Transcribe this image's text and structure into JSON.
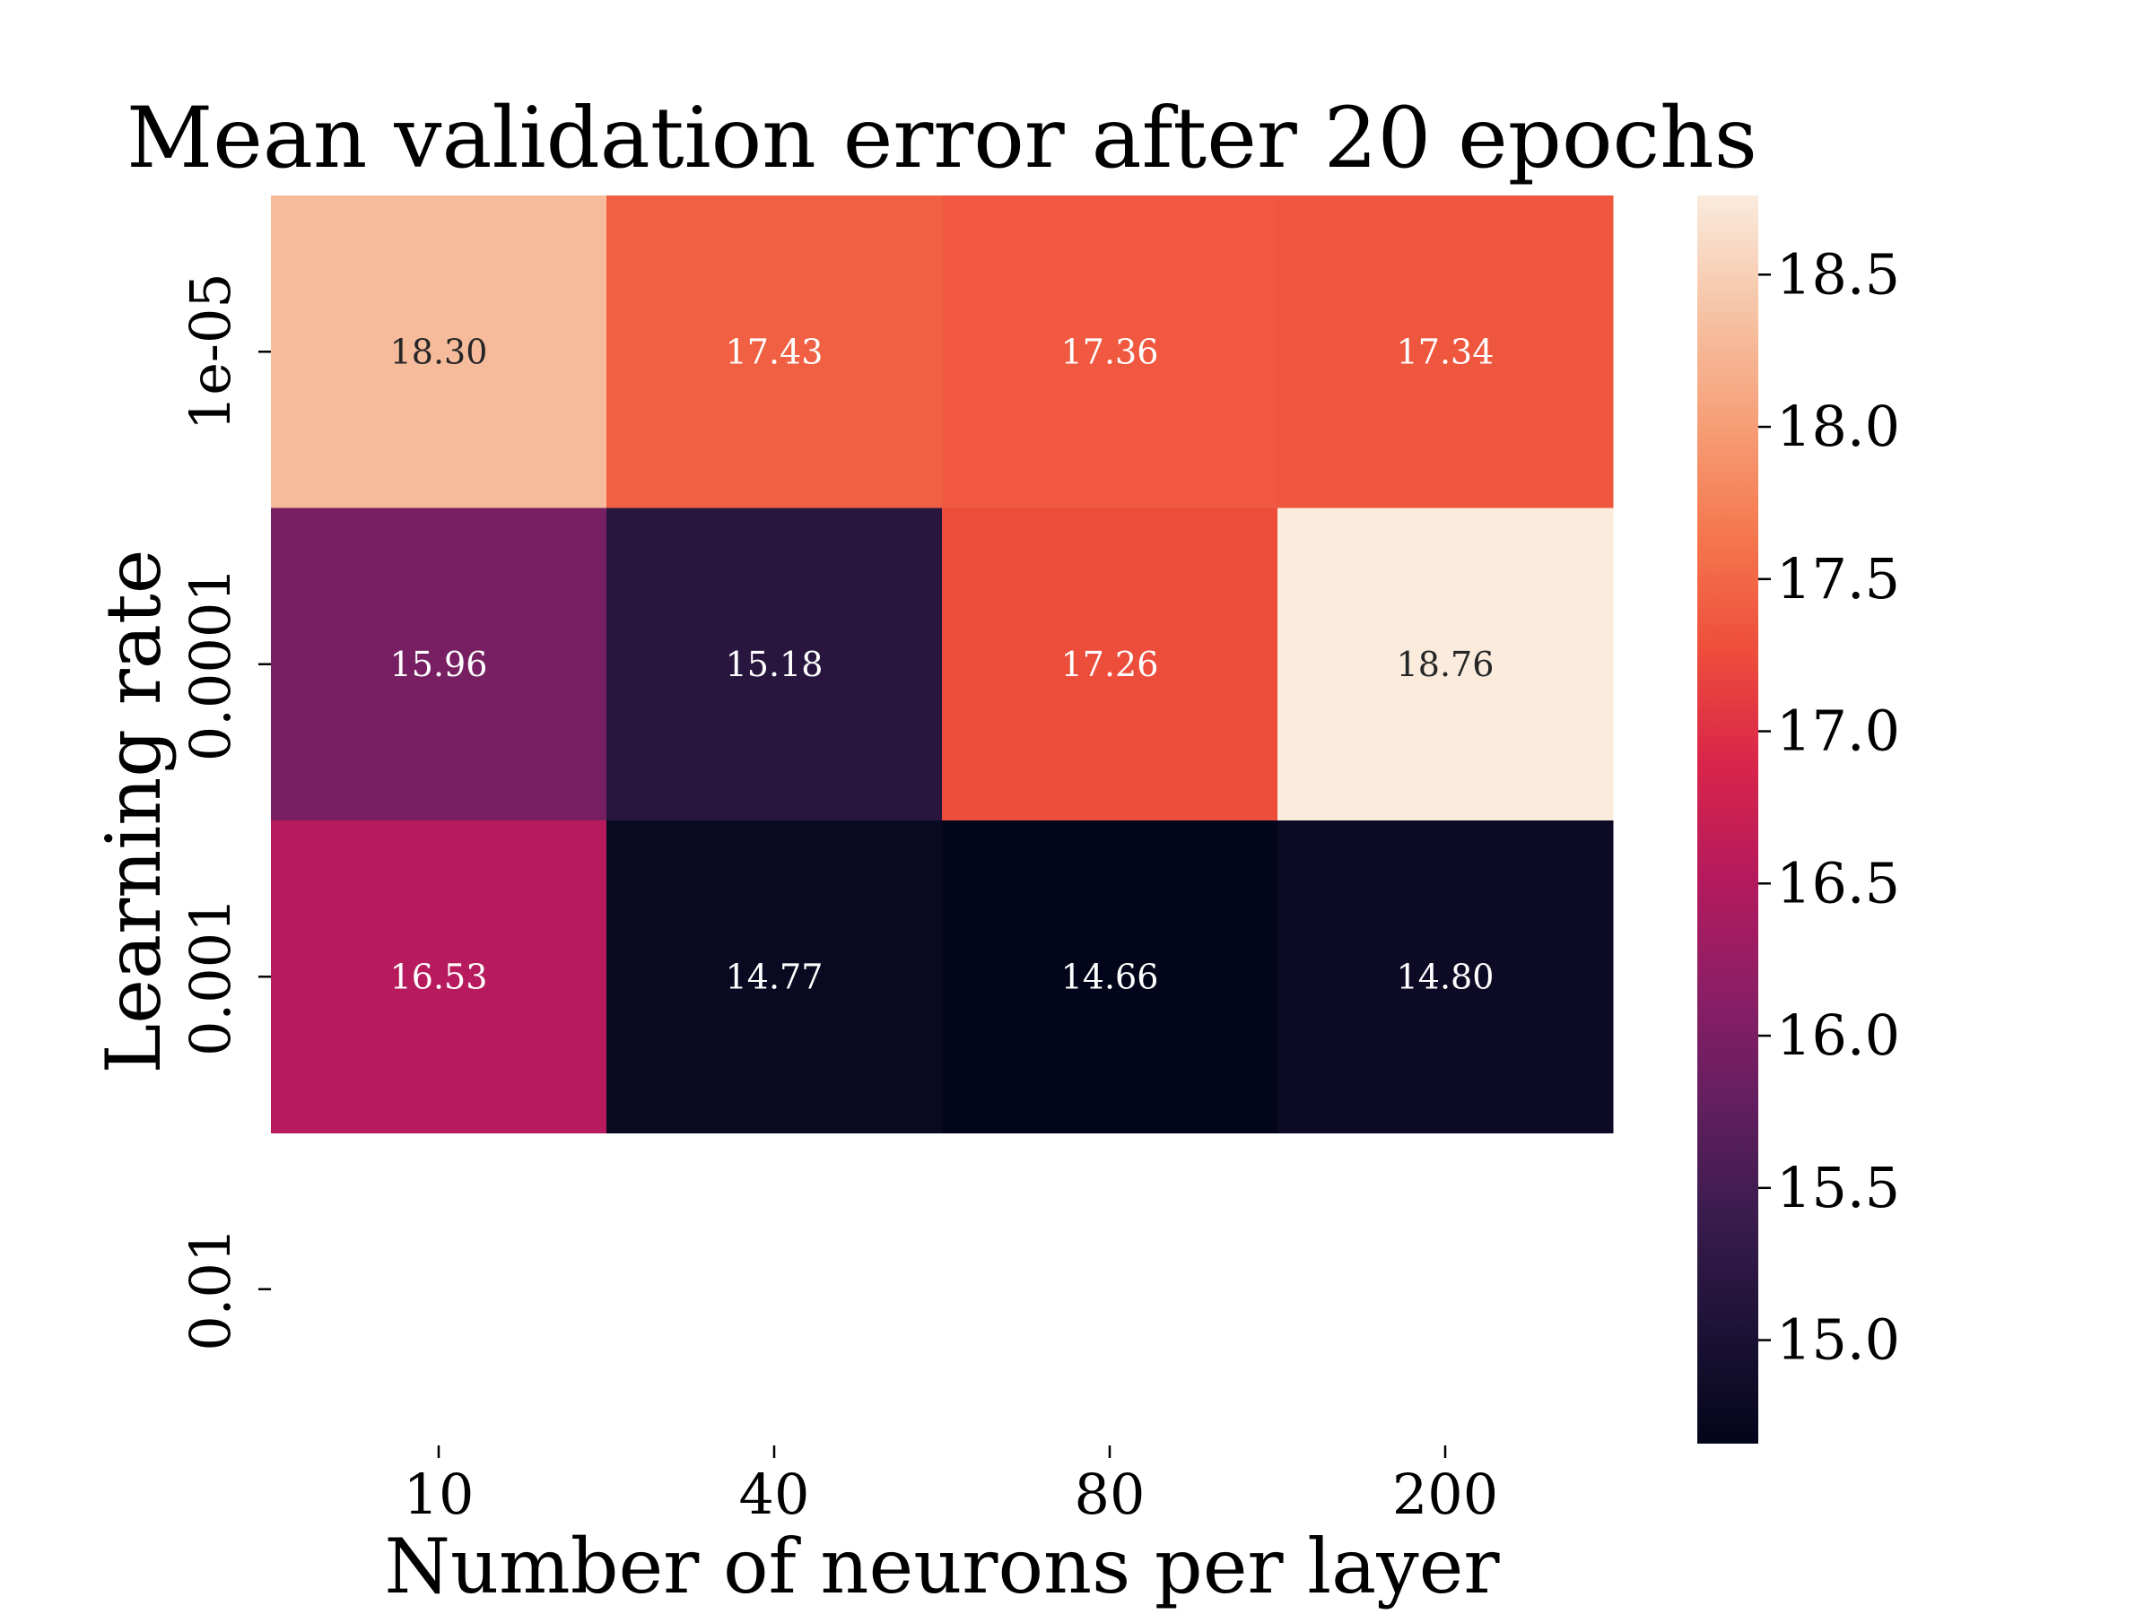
{
  "chart_data": {
    "type": "heatmap",
    "title": "Mean validation error after 20 epochs",
    "xlabel": "Number of neurons per layer",
    "ylabel": "Learning rate",
    "x_categories": [
      "10",
      "40",
      "80",
      "200"
    ],
    "y_categories": [
      "1e-05",
      "0.0001",
      "0.001",
      "0.01"
    ],
    "values": [
      [
        18.3,
        17.43,
        17.36,
        17.34
      ],
      [
        15.96,
        15.18,
        17.26,
        18.76
      ],
      [
        16.53,
        14.77,
        14.66,
        14.8
      ],
      [
        null,
        null,
        null,
        null
      ]
    ],
    "cell_labels": [
      [
        "18.30",
        "17.43",
        "17.36",
        "17.34"
      ],
      [
        "15.96",
        "15.18",
        "17.26",
        "18.76"
      ],
      [
        "16.53",
        "14.77",
        "14.66",
        "14.80"
      ],
      [
        "",
        "",
        "",
        ""
      ]
    ],
    "colorbar": {
      "range": [
        14.66,
        18.76
      ],
      "ticks": [
        15.0,
        15.5,
        16.0,
        16.5,
        17.0,
        17.5,
        18.0,
        18.5
      ],
      "tick_labels": [
        "15.0",
        "15.5",
        "16.0",
        "16.5",
        "17.0",
        "17.5",
        "18.0",
        "18.5"
      ],
      "colormap": "rocket",
      "colormap_stops": [
        "#03051a",
        "#1c1236",
        "#3a1c4d",
        "#631f5f",
        "#8d1e66",
        "#b61a5d",
        "#d9254a",
        "#ee4e3b",
        "#f5774d",
        "#f69f78",
        "#f6c4a6",
        "#faebdd"
      ]
    }
  }
}
